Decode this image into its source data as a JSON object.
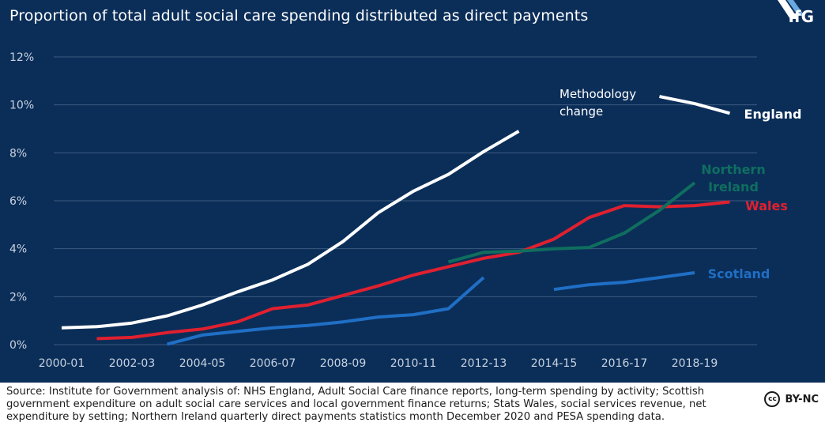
{
  "title": "Proportion of total adult social care spending distributed as direct payments",
  "logo": {
    "text": "IfG"
  },
  "source": "Source: Institute for Government analysis of: NHS England, Adult Social Care finance reports, long-term spending by activity; Scottish government expenditure on adult social care services and local government finance returns; Stats Wales, social services revenue, net expenditure by setting; Northern Ireland quarterly direct payments statistics month December 2020 and PESA spending data.",
  "license": {
    "icon": "cc-icon",
    "text": "BY-NC"
  },
  "colors": {
    "background": "#0b2e59",
    "grid": "#3c5a80",
    "axis_text": "#c8d2df",
    "england": "#ffffff",
    "wales": "#e0202f",
    "scotland": "#1f6fc5",
    "northern_ireland": "#0f6e5e"
  },
  "chart_data": {
    "type": "line",
    "title": "Proportion of total adult social care spending distributed as direct payments",
    "xlabel": "",
    "ylabel": "",
    "x_tick_labels": [
      "2000-01",
      "2002-03",
      "2004-05",
      "2006-07",
      "2008-09",
      "2010-11",
      "2012-13",
      "2014-15",
      "2016-17",
      "2018-19"
    ],
    "y_tick_labels": [
      "0%",
      "2%",
      "4%",
      "6%",
      "8%",
      "10%",
      "12%"
    ],
    "ylim": [
      0,
      12
    ],
    "grid": true,
    "annotations": [
      {
        "text_lines": [
          "Methodology",
          "change"
        ],
        "x": "2014-15",
        "y": 10.4
      }
    ],
    "series": [
      {
        "name": "England",
        "color": "#ffffff",
        "label_lines": [
          "England"
        ],
        "segments": [
          [
            [
              "2000-01",
              0.7
            ],
            [
              "2001-02",
              0.75
            ],
            [
              "2002-03",
              0.9
            ],
            [
              "2003-04",
              1.2
            ],
            [
              "2004-05",
              1.65
            ],
            [
              "2005-06",
              2.2
            ],
            [
              "2006-07",
              2.7
            ],
            [
              "2007-08",
              3.35
            ],
            [
              "2008-09",
              4.3
            ],
            [
              "2009-10",
              5.5
            ],
            [
              "2010-11",
              6.4
            ],
            [
              "2011-12",
              7.1
            ],
            [
              "2012-13",
              8.05
            ],
            [
              "2013-14",
              8.9
            ]
          ],
          [
            [
              "2017-18",
              10.35
            ],
            [
              "2018-19",
              10.05
            ],
            [
              "2019-20",
              9.65
            ]
          ]
        ]
      },
      {
        "name": "Wales",
        "color": "#e0202f",
        "label_lines": [
          "Wales"
        ],
        "segments": [
          [
            [
              "2001-02",
              0.25
            ],
            [
              "2002-03",
              0.3
            ],
            [
              "2003-04",
              0.5
            ],
            [
              "2004-05",
              0.65
            ],
            [
              "2005-06",
              0.95
            ],
            [
              "2006-07",
              1.5
            ],
            [
              "2007-08",
              1.65
            ],
            [
              "2008-09",
              2.05
            ],
            [
              "2009-10",
              2.45
            ],
            [
              "2010-11",
              2.9
            ],
            [
              "2011-12",
              3.25
            ],
            [
              "2012-13",
              3.6
            ],
            [
              "2013-14",
              3.85
            ],
            [
              "2014-15",
              4.4
            ],
            [
              "2015-16",
              5.3
            ],
            [
              "2016-17",
              5.8
            ],
            [
              "2017-18",
              5.75
            ],
            [
              "2018-19",
              5.8
            ],
            [
              "2019-20",
              5.95
            ]
          ]
        ]
      },
      {
        "name": "Scotland",
        "color": "#1f6fc5",
        "label_lines": [
          "Scotland"
        ],
        "segments": [
          [
            [
              "2003-04",
              0.02
            ],
            [
              "2004-05",
              0.4
            ],
            [
              "2005-06",
              0.55
            ],
            [
              "2006-07",
              0.7
            ],
            [
              "2007-08",
              0.8
            ],
            [
              "2008-09",
              0.95
            ],
            [
              "2009-10",
              1.15
            ],
            [
              "2010-11",
              1.25
            ],
            [
              "2011-12",
              1.5
            ],
            [
              "2012-13",
              2.8
            ]
          ],
          [
            [
              "2014-15",
              2.3
            ],
            [
              "2015-16",
              2.5
            ],
            [
              "2016-17",
              2.6
            ],
            [
              "2017-18",
              2.8
            ],
            [
              "2018-19",
              3.0
            ]
          ]
        ]
      },
      {
        "name": "Northern Ireland",
        "color": "#0f6e5e",
        "label_lines": [
          "Northern",
          "Ireland"
        ],
        "segments": [
          [
            [
              "2011-12",
              3.45
            ],
            [
              "2012-13",
              3.85
            ],
            [
              "2013-14",
              3.9
            ],
            [
              "2014-15",
              4.0
            ],
            [
              "2015-16",
              4.05
            ],
            [
              "2016-17",
              4.65
            ],
            [
              "2017-18",
              5.6
            ],
            [
              "2018-19",
              6.75
            ]
          ]
        ]
      }
    ]
  }
}
